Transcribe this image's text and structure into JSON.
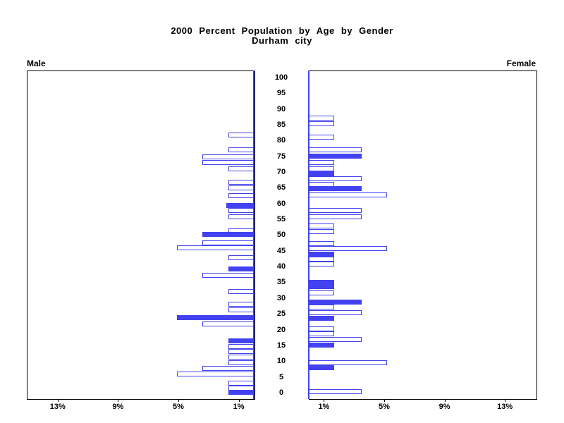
{
  "title": "2000 Percent Population by Age by Gender",
  "subtitle": "Durham city",
  "panels": {
    "male_label": "Male",
    "female_label": "Female"
  },
  "colors": {
    "bar_blue": "#4242f0",
    "axis_black": "#000000",
    "background": "#ffffff"
  },
  "chart_data": {
    "type": "bar",
    "variant": "population-pyramid",
    "title": "2000 Percent Population by Age by Gender",
    "subtitle": "Durham city",
    "grid": false,
    "legend": false,
    "age_axis": {
      "min": 0,
      "max": 100,
      "tick_step": 5,
      "tick_labels": [
        "0",
        "5",
        "10",
        "15",
        "20",
        "25",
        "30",
        "35",
        "40",
        "45",
        "50",
        "55",
        "60",
        "65",
        "70",
        "75",
        "80",
        "85",
        "90",
        "95",
        "100"
      ]
    },
    "pct_axis": {
      "unit": "%",
      "ticks": [
        1,
        5,
        9,
        13
      ],
      "male_tick_labels": [
        "13%",
        "9%",
        "5%",
        "1%"
      ],
      "female_tick_labels": [
        "1%",
        "5%",
        "9%",
        "13%"
      ],
      "max": 15
    },
    "series": [
      {
        "name": "Male",
        "side": "left",
        "bars": [
          {
            "age": 81.7,
            "pct": 1.7,
            "style": "hollow"
          },
          {
            "age": 77.0,
            "pct": 1.7,
            "style": "hollow"
          },
          {
            "age": 74.8,
            "pct": 3.4,
            "style": "hollow"
          },
          {
            "age": 72.9,
            "pct": 3.4,
            "style": "hollow"
          },
          {
            "age": 71.0,
            "pct": 1.7,
            "style": "hollow"
          },
          {
            "age": 66.7,
            "pct": 1.7,
            "style": "hollow"
          },
          {
            "age": 65.0,
            "pct": 1.7,
            "style": "hollow"
          },
          {
            "age": 62.4,
            "pct": 1.7,
            "style": "hollow"
          },
          {
            "age": 59.3,
            "pct": 1.8,
            "style": "solid"
          },
          {
            "age": 57.8,
            "pct": 1.7,
            "style": "hollow"
          },
          {
            "age": 55.8,
            "pct": 1.7,
            "style": "hollow"
          },
          {
            "age": 51.3,
            "pct": 1.7,
            "style": "hollow"
          },
          {
            "age": 50.2,
            "pct": 3.4,
            "style": "solid"
          },
          {
            "age": 47.6,
            "pct": 3.4,
            "style": "hollow"
          },
          {
            "age": 45.9,
            "pct": 5.1,
            "style": "hollow"
          },
          {
            "age": 42.9,
            "pct": 1.7,
            "style": "hollow"
          },
          {
            "age": 39.3,
            "pct": 1.7,
            "style": "solid"
          },
          {
            "age": 37.2,
            "pct": 3.4,
            "style": "hollow"
          },
          {
            "age": 32.2,
            "pct": 1.7,
            "style": "hollow"
          },
          {
            "age": 28.1,
            "pct": 1.7,
            "style": "hollow"
          },
          {
            "age": 26.2,
            "pct": 1.7,
            "style": "hollow"
          },
          {
            "age": 23.9,
            "pct": 5.1,
            "style": "solid"
          },
          {
            "age": 21.7,
            "pct": 3.4,
            "style": "hollow"
          },
          {
            "age": 16.5,
            "pct": 1.7,
            "style": "solid"
          },
          {
            "age": 14.7,
            "pct": 1.7,
            "style": "hollow"
          },
          {
            "age": 13.0,
            "pct": 1.7,
            "style": "hollow"
          },
          {
            "age": 11.3,
            "pct": 1.7,
            "style": "hollow"
          },
          {
            "age": 9.5,
            "pct": 1.7,
            "style": "hollow"
          },
          {
            "age": 7.7,
            "pct": 3.4,
            "style": "hollow"
          },
          {
            "age": 5.9,
            "pct": 5.1,
            "style": "hollow"
          },
          {
            "age": 3.0,
            "pct": 1.7,
            "style": "hollow"
          },
          {
            "age": 1.4,
            "pct": 1.7,
            "style": "hollow"
          },
          {
            "age": 0.2,
            "pct": 1.7,
            "style": "solid"
          }
        ]
      },
      {
        "name": "Female",
        "side": "right",
        "bars": [
          {
            "age": 87.2,
            "pct": 1.7,
            "style": "hollow"
          },
          {
            "age": 85.4,
            "pct": 1.7,
            "style": "hollow"
          },
          {
            "age": 81.0,
            "pct": 1.7,
            "style": "hollow"
          },
          {
            "age": 77.1,
            "pct": 3.5,
            "style": "hollow"
          },
          {
            "age": 75.1,
            "pct": 3.5,
            "style": "solid"
          },
          {
            "age": 72.9,
            "pct": 1.7,
            "style": "hollow"
          },
          {
            "age": 71.1,
            "pct": 1.7,
            "style": "hollow"
          },
          {
            "age": 69.4,
            "pct": 1.7,
            "style": "solid"
          },
          {
            "age": 67.9,
            "pct": 3.5,
            "style": "hollow"
          },
          {
            "age": 66.0,
            "pct": 1.7,
            "style": "hollow"
          },
          {
            "age": 64.8,
            "pct": 3.5,
            "style": "solid"
          },
          {
            "age": 62.8,
            "pct": 5.2,
            "style": "hollow"
          },
          {
            "age": 57.7,
            "pct": 3.5,
            "style": "hollow"
          },
          {
            "age": 55.9,
            "pct": 3.5,
            "style": "hollow"
          },
          {
            "age": 52.9,
            "pct": 1.7,
            "style": "hollow"
          },
          {
            "age": 51.1,
            "pct": 1.7,
            "style": "hollow"
          },
          {
            "age": 47.4,
            "pct": 1.7,
            "style": "hollow"
          },
          {
            "age": 45.8,
            "pct": 5.2,
            "style": "hollow"
          },
          {
            "age": 43.9,
            "pct": 1.7,
            "style": "solid"
          },
          {
            "age": 42.3,
            "pct": 1.7,
            "style": "hollow"
          },
          {
            "age": 40.7,
            "pct": 1.7,
            "style": "hollow"
          },
          {
            "age": 35.1,
            "pct": 1.7,
            "style": "solid"
          },
          {
            "age": 33.6,
            "pct": 1.7,
            "style": "solid"
          },
          {
            "age": 31.6,
            "pct": 1.7,
            "style": "hollow"
          },
          {
            "age": 28.8,
            "pct": 3.5,
            "style": "solid"
          },
          {
            "age": 27.1,
            "pct": 1.7,
            "style": "hollow"
          },
          {
            "age": 25.3,
            "pct": 3.5,
            "style": "hollow"
          },
          {
            "age": 23.7,
            "pct": 1.7,
            "style": "solid"
          },
          {
            "age": 20.3,
            "pct": 1.7,
            "style": "hollow"
          },
          {
            "age": 18.6,
            "pct": 1.7,
            "style": "hollow"
          },
          {
            "age": 16.9,
            "pct": 3.5,
            "style": "hollow"
          },
          {
            "age": 15.1,
            "pct": 1.7,
            "style": "solid"
          },
          {
            "age": 9.6,
            "pct": 5.2,
            "style": "hollow"
          },
          {
            "age": 8.0,
            "pct": 1.7,
            "style": "solid"
          },
          {
            "age": 0.4,
            "pct": 3.5,
            "style": "hollow"
          }
        ]
      }
    ]
  }
}
